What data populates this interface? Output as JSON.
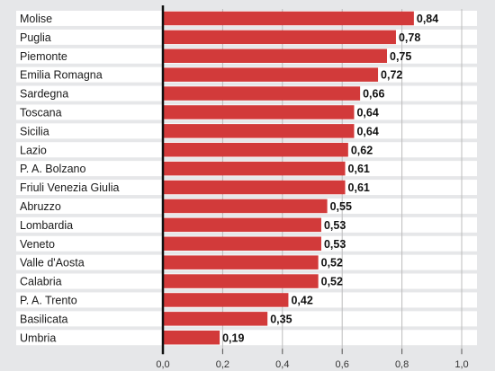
{
  "chart_data": {
    "type": "bar",
    "orientation": "horizontal",
    "title": "",
    "xlabel": "",
    "ylabel": "",
    "categories": [
      "Molise",
      "Puglia",
      "Piemonte",
      "Emilia Romagna",
      "Sardegna",
      "Toscana",
      "Sicilia",
      "Lazio",
      "P. A. Bolzano",
      "Friuli Venezia Giulia",
      "Abruzzo",
      "Lombardia",
      "Veneto",
      "Valle d'Aosta",
      "Calabria",
      "P. A. Trento",
      "Basilicata",
      "Umbria"
    ],
    "values": [
      0.84,
      0.78,
      0.75,
      0.72,
      0.66,
      0.64,
      0.64,
      0.62,
      0.61,
      0.61,
      0.55,
      0.53,
      0.53,
      0.52,
      0.52,
      0.42,
      0.35,
      0.19
    ],
    "value_labels": [
      "0,84",
      "0,78",
      "0,75",
      "0,72",
      "0,66",
      "0,64",
      "0,64",
      "0,62",
      "0,61",
      "0,61",
      "0,55",
      "0,53",
      "0,53",
      "0,52",
      "0,52",
      "0,42",
      "0,35",
      "0,19"
    ],
    "xlim": [
      0,
      1.0
    ],
    "xticks": [
      0,
      0.2,
      0.4,
      0.6,
      0.8,
      1.0
    ],
    "xtick_labels": [
      "0,0",
      "0,2",
      "0,4",
      "0,6",
      "0,8",
      "1,0"
    ],
    "grid": true,
    "legend": "none",
    "colors": {
      "bar": "#d23a3a",
      "row_band": "#ffffff",
      "background": "#e6e7e9",
      "axis": "#111111",
      "grid": "#bcbcbc"
    }
  }
}
